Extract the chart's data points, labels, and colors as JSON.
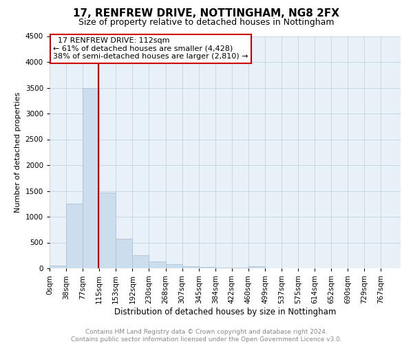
{
  "title": "17, RENFREW DRIVE, NOTTINGHAM, NG8 2FX",
  "subtitle": "Size of property relative to detached houses in Nottingham",
  "xlabel": "Distribution of detached houses by size in Nottingham",
  "ylabel": "Number of detached properties",
  "footer_line1": "Contains HM Land Registry data © Crown copyright and database right 2024.",
  "footer_line2": "Contains public sector information licensed under the Open Government Licence v3.0.",
  "property_size": 112,
  "annotation_title": "17 RENFREW DRIVE: 112sqm",
  "annotation_line1": "← 61% of detached houses are smaller (4,428)",
  "annotation_line2": "38% of semi-detached houses are larger (2,810) →",
  "bar_color": "#ccdded",
  "bar_edge_color": "#aabccc",
  "vline_color": "#cc0000",
  "annotation_box_edge": "#cc0000",
  "ylim": [
    0,
    4500
  ],
  "xlim": [
    0,
    805
  ],
  "bin_width": 38,
  "bar_heights": [
    50,
    1260,
    3500,
    1470,
    580,
    250,
    130,
    75,
    45,
    30,
    20,
    10,
    45,
    0,
    0,
    0,
    0,
    0,
    0,
    0,
    0
  ],
  "bin_labels": [
    "0sqm",
    "38sqm",
    "77sqm",
    "115sqm",
    "153sqm",
    "192sqm",
    "230sqm",
    "268sqm",
    "307sqm",
    "345sqm",
    "384sqm",
    "422sqm",
    "460sqm",
    "499sqm",
    "537sqm",
    "575sqm",
    "614sqm",
    "652sqm",
    "690sqm",
    "729sqm",
    "767sqm"
  ],
  "background_color": "#ffffff",
  "plot_bg_color": "#e8f0f8",
  "grid_color": "#c0ccd8",
  "title_fontsize": 11,
  "subtitle_fontsize": 9,
  "annotation_fontsize": 8,
  "ylabel_fontsize": 8,
  "xlabel_fontsize": 8.5,
  "tick_fontsize": 7.5,
  "footer_fontsize": 6.5,
  "footer_color": "#888888"
}
